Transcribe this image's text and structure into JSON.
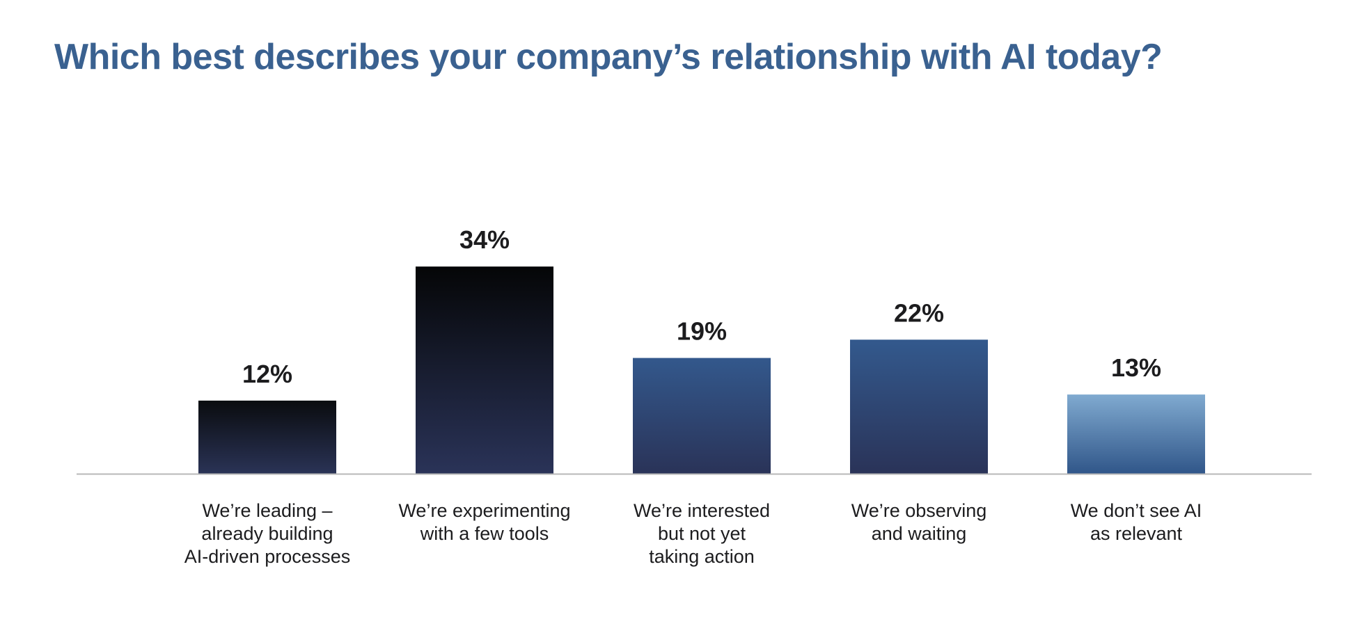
{
  "chart_data": {
    "type": "bar",
    "title": "Which best describes your company’s relationship with AI today?",
    "categories": [
      [
        "We’re leading –",
        "already building",
        "AI-driven processes"
      ],
      [
        "We’re experimenting",
        "with a few tools"
      ],
      [
        "We’re interested",
        "but not yet",
        "taking action"
      ],
      [
        "We’re observing",
        "and waiting"
      ],
      [
        "We don’t see AI",
        "as relevant"
      ]
    ],
    "values": [
      12,
      34,
      19,
      22,
      13
    ],
    "value_labels": [
      "12%",
      "34%",
      "19%",
      "22%",
      "13%"
    ],
    "unit": "%",
    "grid": false,
    "legend": "none",
    "bar_gradients": [
      [
        "#0a0c0f",
        "#2a3356"
      ],
      [
        "#050607",
        "#2a3358"
      ],
      [
        "#33588c",
        "#2a3358"
      ],
      [
        "#33598d",
        "#2a3358"
      ],
      [
        "#80aad0",
        "#305689"
      ]
    ],
    "axis_color": "#b8b8b8",
    "title_color": "#3a6190"
  }
}
